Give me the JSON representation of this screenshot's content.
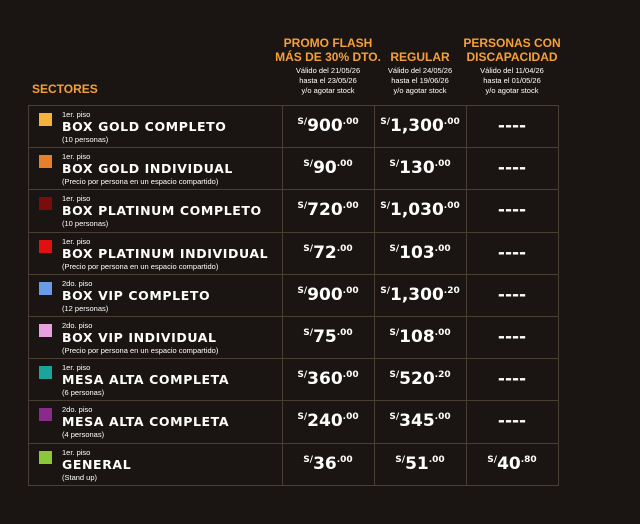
{
  "header": {
    "sectors_label": "SECTORES",
    "columns": [
      {
        "title": [
          "PROMO FLASH",
          "MÁS DE 30% DTO."
        ],
        "validity": [
          "Válido del 21/05/26",
          "hasta el 23/05/26",
          "y/o agotar stock"
        ]
      },
      {
        "title": [
          "REGULAR"
        ],
        "validity": [
          "Válido del 24/05/26",
          "hasta el 19/06/26",
          "y/o agotar stock"
        ]
      },
      {
        "title": [
          "PERSONAS CON",
          "DISCAPACIDAD"
        ],
        "validity": [
          "Válido del 11/04/26",
          "hasta el 01/05/26",
          "y/o agotar stock"
        ]
      }
    ]
  },
  "rows": [
    {
      "color": "#f5b13a",
      "floor": "1er. piso",
      "name": "BOX GOLD COMPLETO",
      "note": "(10 personas)",
      "prices": [
        {
          "currency": "S/",
          "amount": "900",
          "cents": ".00"
        },
        {
          "currency": "S/",
          "amount": "1,300",
          "cents": ".00"
        },
        {
          "text": "----"
        }
      ]
    },
    {
      "color": "#e8802a",
      "floor": "1er. piso",
      "name": "BOX GOLD INDIVIDUAL",
      "note": "(Precio por persona en un espacio compartido)",
      "prices": [
        {
          "currency": "S/",
          "amount": "90",
          "cents": ".00"
        },
        {
          "currency": "S/",
          "amount": "130",
          "cents": ".00"
        },
        {
          "text": "----"
        }
      ]
    },
    {
      "color": "#7a0c0c",
      "floor": "1er. piso",
      "name": "BOX PLATINUM COMPLETO",
      "note": "(10 personas)",
      "prices": [
        {
          "currency": "S/",
          "amount": "720",
          "cents": ".00"
        },
        {
          "currency": "S/",
          "amount": "1,030",
          "cents": ".00"
        },
        {
          "text": "----"
        }
      ]
    },
    {
      "color": "#e01010",
      "floor": "1er. piso",
      "name": "BOX PLATINUM INDIVIDUAL",
      "note": "(Precio por persona en un espacio compartido)",
      "prices": [
        {
          "currency": "S/",
          "amount": "72",
          "cents": ".00"
        },
        {
          "currency": "S/",
          "amount": "103",
          "cents": ".00"
        },
        {
          "text": "----"
        }
      ]
    },
    {
      "color": "#6a9be8",
      "floor": "2do. piso",
      "name": "BOX VIP COMPLETO",
      "note": "(12 personas)",
      "prices": [
        {
          "currency": "S/",
          "amount": "900",
          "cents": ".00"
        },
        {
          "currency": "S/",
          "amount": "1,300",
          "cents": ".20"
        },
        {
          "text": "----"
        }
      ]
    },
    {
      "color": "#e8a0e0",
      "floor": "2do. piso",
      "name": "BOX VIP INDIVIDUAL",
      "note": "(Precio por persona en un espacio compartido)",
      "prices": [
        {
          "currency": "S/",
          "amount": "75",
          "cents": ".00"
        },
        {
          "currency": "S/",
          "amount": "108",
          "cents": ".00"
        },
        {
          "text": "----"
        }
      ]
    },
    {
      "color": "#1aa59a",
      "floor": "1er. piso",
      "name": "MESA ALTA COMPLETA",
      "note": "(6 personas)",
      "prices": [
        {
          "currency": "S/",
          "amount": "360",
          "cents": ".00"
        },
        {
          "currency": "S/",
          "amount": "520",
          "cents": ".20"
        },
        {
          "text": "----"
        }
      ]
    },
    {
      "color": "#8a2a8a",
      "floor": "2do. piso",
      "name": "MESA ALTA COMPLETA",
      "note": "(4 personas)",
      "prices": [
        {
          "currency": "S/",
          "amount": "240",
          "cents": ".00"
        },
        {
          "currency": "S/",
          "amount": "345",
          "cents": ".00"
        },
        {
          "text": "----"
        }
      ]
    },
    {
      "color": "#8ac83a",
      "floor": "1er. piso",
      "name": "GENERAL",
      "note": "(Stand up)",
      "prices": [
        {
          "currency": "S/",
          "amount": "36",
          "cents": ".00"
        },
        {
          "currency": "S/",
          "amount": "51",
          "cents": ".00"
        },
        {
          "currency": "S/",
          "amount": "40",
          "cents": ".80"
        }
      ]
    }
  ]
}
